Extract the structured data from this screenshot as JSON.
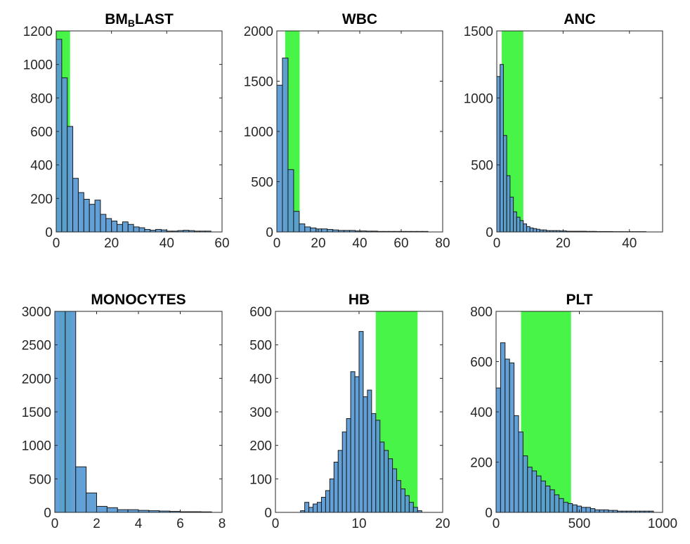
{
  "chart_data": [
    {
      "type": "bar",
      "title": "BM",
      "title_subscript": "B",
      "title_suffix": "LAST",
      "xlim": [
        0,
        60
      ],
      "ylim": [
        0,
        1200
      ],
      "xticks": [
        0,
        20,
        40,
        60
      ],
      "yticks": [
        0,
        200,
        400,
        600,
        800,
        1000,
        1200
      ],
      "bin_start": 0,
      "bin_width": 2,
      "values": [
        1150,
        920,
        630,
        320,
        235,
        195,
        165,
        190,
        105,
        80,
        65,
        45,
        60,
        45,
        30,
        25,
        15,
        10,
        15,
        12,
        5,
        5,
        8,
        10,
        8,
        5,
        5,
        5
      ],
      "reference_range": [
        0,
        5
      ],
      "band_color": "#00f000",
      "bar_color": "#5b9bd5"
    },
    {
      "type": "bar",
      "title": "WBC",
      "xlim": [
        0,
        80
      ],
      "ylim": [
        0,
        2000
      ],
      "xticks": [
        0,
        20,
        40,
        60,
        80
      ],
      "yticks": [
        0,
        500,
        1000,
        1500,
        2000
      ],
      "bin_start": 0,
      "bin_width": 2.7,
      "values": [
        1460,
        1730,
        620,
        205,
        80,
        50,
        40,
        30,
        30,
        25,
        20,
        15,
        15,
        15,
        10,
        10,
        8,
        8,
        5,
        5,
        5,
        5,
        5,
        5,
        5,
        5,
        5
      ],
      "reference_range": [
        4,
        11
      ],
      "band_color": "#00f000",
      "bar_color": "#5b9bd5"
    },
    {
      "type": "bar",
      "title": "ANC",
      "xlim": [
        0,
        50
      ],
      "ylim": [
        0,
        1500
      ],
      "xticks": [
        0,
        20,
        40
      ],
      "yticks": [
        0,
        500,
        1000,
        1500
      ],
      "bin_start": 0,
      "bin_width": 1,
      "values": [
        1160,
        1250,
        720,
        420,
        260,
        150,
        110,
        85,
        60,
        40,
        30,
        25,
        20,
        15,
        15,
        10,
        10,
        10,
        10,
        8,
        8,
        5,
        5,
        5,
        5,
        5,
        5,
        4,
        4,
        4,
        3,
        3,
        3,
        3,
        3,
        2,
        2,
        2,
        2,
        2,
        2,
        2,
        2,
        2,
        2
      ],
      "reference_range": [
        1.5,
        8
      ],
      "band_color": "#00f000",
      "bar_color": "#5b9bd5"
    },
    {
      "type": "bar",
      "title": "MONOCYTES",
      "xlim": [
        0,
        8
      ],
      "ylim": [
        0,
        3000
      ],
      "xticks": [
        0,
        2,
        4,
        6,
        8
      ],
      "yticks": [
        0,
        500,
        1000,
        1500,
        2000,
        2500,
        3000
      ],
      "bin_start": 0,
      "bin_width": 0.5,
      "values": [
        3000,
        3000,
        680,
        290,
        90,
        70,
        40,
        40,
        30,
        25,
        20,
        15,
        10,
        10,
        8
      ],
      "reference_range": [
        0.2,
        0.8
      ],
      "band_color": "#00f000",
      "bar_color": "#5b9bd5"
    },
    {
      "type": "bar",
      "title": "HB",
      "xlim": [
        0,
        20
      ],
      "ylim": [
        0,
        600
      ],
      "xticks": [
        0,
        10,
        20
      ],
      "yticks": [
        0,
        100,
        200,
        300,
        400,
        500,
        600
      ],
      "bin_start": 3,
      "bin_width": 0.5,
      "values": [
        5,
        30,
        15,
        25,
        30,
        45,
        65,
        100,
        150,
        185,
        240,
        280,
        420,
        405,
        540,
        345,
        365,
        295,
        275,
        210,
        185,
        160,
        130,
        95,
        70,
        50,
        30,
        15,
        5
      ],
      "reference_range": [
        12,
        17
      ],
      "band_color": "#00f000",
      "bar_color": "#5b9bd5"
    },
    {
      "type": "bar",
      "title": "PLT",
      "xlim": [
        0,
        1000
      ],
      "ylim": [
        0,
        800
      ],
      "xticks": [
        0,
        500,
        1000
      ],
      "yticks": [
        0,
        200,
        400,
        600,
        800
      ],
      "bin_start": 0,
      "bin_width": 27,
      "values": [
        495,
        675,
        610,
        595,
        385,
        320,
        225,
        180,
        165,
        145,
        125,
        105,
        90,
        70,
        55,
        40,
        35,
        30,
        25,
        20,
        20,
        15,
        10,
        10,
        10,
        8,
        8,
        5,
        5,
        5,
        5,
        5,
        5,
        5,
        5
      ],
      "reference_range": [
        150,
        450
      ],
      "band_color": "#00f000",
      "bar_color": "#5b9bd5"
    }
  ]
}
